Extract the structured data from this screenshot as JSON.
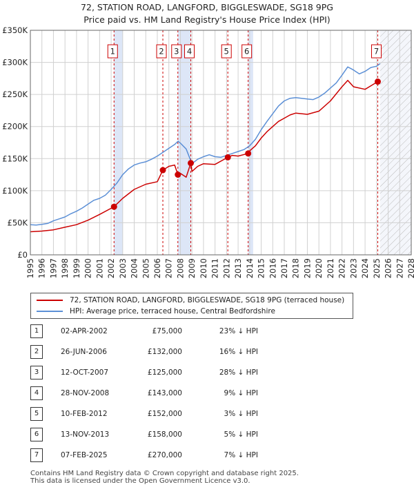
{
  "title": {
    "line1": "72, STATION ROAD, LANGFORD, BIGGLESWADE, SG18 9PG",
    "line2": "Price paid vs. HM Land Registry's House Price Index (HPI)"
  },
  "colors": {
    "price_paid": "#cc0000",
    "hpi": "#5b8fd6",
    "band": "#dde6f7",
    "marker_line": "#cc0000",
    "grid": "#d0d0d0"
  },
  "legend": {
    "price_paid": "72, STATION ROAD, LANGFORD, BIGGLESWADE, SG18 9PG (terraced house)",
    "hpi": "HPI: Average price, terraced house, Central Bedfordshire"
  },
  "sales": [
    {
      "num": "1",
      "date": "02-APR-2002",
      "price": "£75,000",
      "hpi_diff": "23% ↓ HPI"
    },
    {
      "num": "2",
      "date": "26-JUN-2006",
      "price": "£132,000",
      "hpi_diff": "16% ↓ HPI"
    },
    {
      "num": "3",
      "date": "12-OCT-2007",
      "price": "£125,000",
      "hpi_diff": "28% ↓ HPI"
    },
    {
      "num": "4",
      "date": "28-NOV-2008",
      "price": "£143,000",
      "hpi_diff": "9% ↓ HPI"
    },
    {
      "num": "5",
      "date": "10-FEB-2012",
      "price": "£152,000",
      "hpi_diff": "3% ↓ HPI"
    },
    {
      "num": "6",
      "date": "13-NOV-2013",
      "price": "£158,000",
      "hpi_diff": "5% ↓ HPI"
    },
    {
      "num": "7",
      "date": "07-FEB-2025",
      "price": "£270,000",
      "hpi_diff": "7% ↓ HPI"
    }
  ],
  "footer": {
    "line1": "Contains HM Land Registry data © Crown copyright and database right 2025.",
    "line2": "This data is licensed under the Open Government Licence v3.0."
  },
  "chart_data": {
    "type": "line",
    "title": "72, STATION ROAD, LANGFORD, BIGGLESWADE, SG18 9PG — Price paid vs. HM Land Registry's House Price Index (HPI)",
    "xlabel": "",
    "ylabel": "",
    "xlim": [
      1995,
      2028
    ],
    "ylim": [
      0,
      350000
    ],
    "y_ticks": [
      {
        "value": 0,
        "label": "£0"
      },
      {
        "value": 50000,
        "label": "£50K"
      },
      {
        "value": 100000,
        "label": "£100K"
      },
      {
        "value": 150000,
        "label": "£150K"
      },
      {
        "value": 200000,
        "label": "£200K"
      },
      {
        "value": 250000,
        "label": "£250K"
      },
      {
        "value": 300000,
        "label": "£300K"
      },
      {
        "value": 350000,
        "label": "£350K"
      }
    ],
    "x_ticks": [
      "1995",
      "1996",
      "1997",
      "1998",
      "1999",
      "2000",
      "2001",
      "2002",
      "2003",
      "2004",
      "2005",
      "2006",
      "2007",
      "2008",
      "2009",
      "2010",
      "2011",
      "2012",
      "2013",
      "2014",
      "2015",
      "2016",
      "2017",
      "2018",
      "2019",
      "2020",
      "2021",
      "2022",
      "2023",
      "2024",
      "2025",
      "2026",
      "2027",
      "2028"
    ],
    "forecast_from": 2025.3,
    "shaded_bands": [
      [
        2002.25,
        2003.0
      ],
      [
        2007.78,
        2008.9
      ],
      [
        2013.87,
        2014.3
      ]
    ],
    "series": [
      {
        "name": "HPI: Average price, terraced house, Central Bedfordshire",
        "x": [
          1995,
          1995.5,
          1996,
          1996.5,
          1997,
          1997.5,
          1998,
          1998.5,
          1999,
          1999.5,
          2000,
          2000.5,
          2001,
          2001.5,
          2002,
          2002.5,
          2003,
          2003.5,
          2004,
          2004.5,
          2005,
          2005.5,
          2006,
          2006.5,
          2007,
          2007.5,
          2007.8,
          2008,
          2008.5,
          2009,
          2009.5,
          2010,
          2010.5,
          2011,
          2011.5,
          2012,
          2012.5,
          2013,
          2013.5,
          2014,
          2014.5,
          2015,
          2015.5,
          2016,
          2016.5,
          2017,
          2017.5,
          2018,
          2018.5,
          2019,
          2019.5,
          2020,
          2020.5,
          2021,
          2021.5,
          2022,
          2022.5,
          2023,
          2023.5,
          2024,
          2024.5,
          2025,
          2025.3
        ],
        "values": [
          47000,
          46500,
          47500,
          49000,
          53000,
          56000,
          59000,
          64000,
          68000,
          73000,
          79000,
          85000,
          88000,
          93000,
          102000,
          112000,
          125000,
          134000,
          140000,
          143000,
          145000,
          149000,
          154000,
          160000,
          166000,
          172000,
          177000,
          174000,
          165000,
          142000,
          149000,
          153000,
          156000,
          153000,
          152000,
          155000,
          158000,
          161000,
          164000,
          170000,
          180000,
          195000,
          208000,
          220000,
          232000,
          240000,
          244000,
          245000,
          244000,
          243000,
          242000,
          246000,
          252000,
          260000,
          268000,
          280000,
          293000,
          288000,
          282000,
          286000,
          292000,
          294000,
          298000
        ]
      },
      {
        "name": "72, STATION ROAD, LANGFORD, BIGGLESWADE, SG18 9PG (terraced house)",
        "x": [
          1995,
          1996,
          1997,
          1998,
          1999,
          2000,
          2001,
          2002.25,
          2003,
          2004,
          2005,
          2006.0,
          2006.48,
          2007,
          2007.5,
          2007.78,
          2008.0,
          2008.5,
          2008.9,
          2009.0,
          2009.5,
          2010,
          2011,
          2012.11,
          2012.5,
          2013,
          2013.87,
          2014,
          2014.5,
          2015,
          2015.5,
          2016,
          2016.5,
          2017,
          2017.5,
          2018,
          2019,
          2020,
          2021,
          2022,
          2022.5,
          2023,
          2024,
          2025.1,
          2025.3
        ],
        "values": [
          36000,
          37000,
          39000,
          43000,
          47000,
          54000,
          63000,
          75000,
          88000,
          102000,
          110000,
          114000,
          132000,
          138000,
          140000,
          125000,
          127000,
          121000,
          143000,
          130000,
          138000,
          142000,
          141000,
          152000,
          155000,
          154000,
          158000,
          162000,
          170000,
          182000,
          192000,
          200000,
          208000,
          213000,
          218000,
          221000,
          219000,
          224000,
          240000,
          262000,
          272000,
          262000,
          258000,
          270000,
          271000
        ]
      }
    ],
    "sales_markers": [
      {
        "label": "1",
        "x": 2002.25,
        "value": 75000
      },
      {
        "label": "2",
        "x": 2006.48,
        "value": 132000
      },
      {
        "label": "3",
        "x": 2007.78,
        "value": 125000
      },
      {
        "label": "4",
        "x": 2008.9,
        "value": 143000
      },
      {
        "label": "5",
        "x": 2012.11,
        "value": 152000
      },
      {
        "label": "6",
        "x": 2013.87,
        "value": 158000
      },
      {
        "label": "7",
        "x": 2025.1,
        "value": 270000
      }
    ]
  }
}
